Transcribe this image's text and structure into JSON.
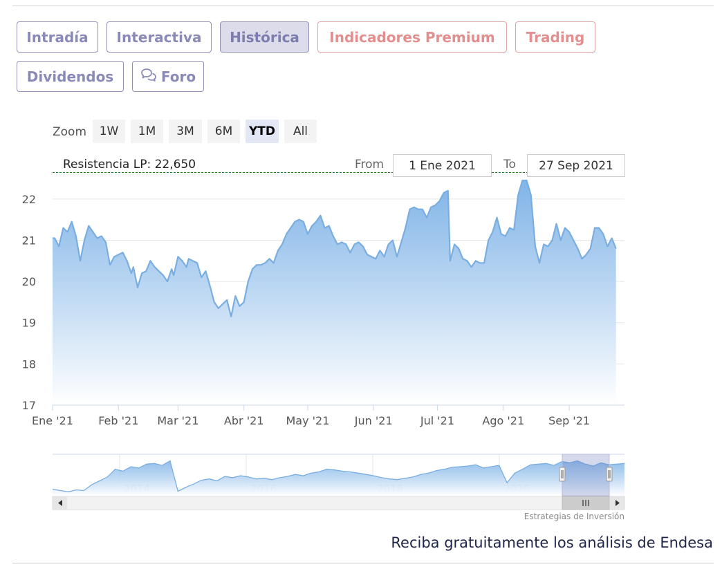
{
  "tabs": [
    {
      "label": "Intradía"
    },
    {
      "label": "Interactiva"
    },
    {
      "label": "Histórica"
    },
    {
      "label": "Indicadores Premium"
    },
    {
      "label": "Trading"
    },
    {
      "label": "Dividendos"
    },
    {
      "label": "Foro"
    }
  ],
  "zoom": {
    "label": "Zoom",
    "buttons": [
      "1W",
      "1M",
      "3M",
      "6M",
      "YTD",
      "All"
    ],
    "selected": "YTD"
  },
  "range": {
    "from_label": "From",
    "from_value": "1 Ene 2021",
    "to_label": "To",
    "to_value": "27 Sep 2021"
  },
  "resistance": {
    "label": "Resistencia LP: 22,650",
    "value": 22.65,
    "color": "#1e7b1e"
  },
  "chart_data": {
    "type": "area",
    "title": "",
    "xlabel": "",
    "ylabel": "",
    "ylim": [
      17,
      22.5
    ],
    "yticks": [
      17,
      18,
      19,
      20,
      21,
      22
    ],
    "x_tick_labels": [
      "Ene '21",
      "Feb '21",
      "Mar '21",
      "Abr '21",
      "May '21",
      "Jun '21",
      "Jul '21",
      "Ago '21",
      "Sep '21"
    ],
    "x_tick_days": [
      0,
      31,
      59,
      90,
      120,
      151,
      181,
      212,
      243
    ],
    "xlim_days": [
      0,
      269
    ],
    "line_color": "#7aaee0",
    "fill_top": "#7ab0e6",
    "fill_bottom": "#ffffff",
    "grid": true,
    "points": [
      [
        0,
        21.05
      ],
      [
        1,
        21.05
      ],
      [
        3,
        20.85
      ],
      [
        5,
        21.3
      ],
      [
        7,
        21.2
      ],
      [
        9,
        21.45
      ],
      [
        11,
        21.1
      ],
      [
        13,
        20.5
      ],
      [
        15,
        21.0
      ],
      [
        17,
        21.35
      ],
      [
        19,
        21.2
      ],
      [
        21,
        21.05
      ],
      [
        23,
        21.1
      ],
      [
        25,
        20.95
      ],
      [
        27,
        20.4
      ],
      [
        29,
        20.6
      ],
      [
        31,
        20.65
      ],
      [
        33,
        20.7
      ],
      [
        35,
        20.5
      ],
      [
        37,
        20.2
      ],
      [
        38,
        20.35
      ],
      [
        40,
        19.85
      ],
      [
        42,
        20.2
      ],
      [
        44,
        20.25
      ],
      [
        46,
        20.5
      ],
      [
        48,
        20.35
      ],
      [
        50,
        20.25
      ],
      [
        52,
        20.15
      ],
      [
        54,
        20.0
      ],
      [
        56,
        20.3
      ],
      [
        57,
        20.15
      ],
      [
        59,
        20.6
      ],
      [
        61,
        20.5
      ],
      [
        63,
        20.35
      ],
      [
        64,
        20.55
      ],
      [
        66,
        20.5
      ],
      [
        68,
        20.45
      ],
      [
        70,
        20.1
      ],
      [
        72,
        20.25
      ],
      [
        74,
        19.9
      ],
      [
        76,
        19.5
      ],
      [
        78,
        19.35
      ],
      [
        80,
        19.45
      ],
      [
        82,
        19.55
      ],
      [
        84,
        19.15
      ],
      [
        86,
        19.65
      ],
      [
        88,
        19.4
      ],
      [
        90,
        19.5
      ],
      [
        92,
        20.0
      ],
      [
        94,
        20.3
      ],
      [
        96,
        20.4
      ],
      [
        98,
        20.4
      ],
      [
        100,
        20.45
      ],
      [
        102,
        20.55
      ],
      [
        104,
        20.45
      ],
      [
        106,
        20.75
      ],
      [
        108,
        20.9
      ],
      [
        110,
        21.15
      ],
      [
        112,
        21.3
      ],
      [
        114,
        21.45
      ],
      [
        116,
        21.5
      ],
      [
        118,
        21.45
      ],
      [
        120,
        21.15
      ],
      [
        122,
        21.35
      ],
      [
        124,
        21.45
      ],
      [
        126,
        21.6
      ],
      [
        128,
        21.3
      ],
      [
        130,
        21.35
      ],
      [
        132,
        21.1
      ],
      [
        134,
        20.9
      ],
      [
        136,
        20.95
      ],
      [
        138,
        20.9
      ],
      [
        140,
        20.7
      ],
      [
        142,
        20.9
      ],
      [
        144,
        20.95
      ],
      [
        146,
        20.85
      ],
      [
        148,
        20.65
      ],
      [
        150,
        20.6
      ],
      [
        152,
        20.55
      ],
      [
        154,
        20.75
      ],
      [
        156,
        20.6
      ],
      [
        158,
        20.9
      ],
      [
        160,
        21.0
      ],
      [
        162,
        20.6
      ],
      [
        164,
        20.95
      ],
      [
        166,
        21.3
      ],
      [
        168,
        21.75
      ],
      [
        170,
        21.8
      ],
      [
        172,
        21.75
      ],
      [
        174,
        21.75
      ],
      [
        176,
        21.55
      ],
      [
        178,
        21.8
      ],
      [
        180,
        21.85
      ],
      [
        182,
        21.95
      ],
      [
        184,
        22.15
      ],
      [
        186,
        22.2
      ],
      [
        187,
        20.5
      ],
      [
        189,
        20.9
      ],
      [
        191,
        20.8
      ],
      [
        193,
        20.55
      ],
      [
        195,
        20.5
      ],
      [
        197,
        20.35
      ],
      [
        199,
        20.5
      ],
      [
        201,
        20.45
      ],
      [
        203,
        20.45
      ],
      [
        205,
        21.0
      ],
      [
        207,
        21.2
      ],
      [
        209,
        21.55
      ],
      [
        211,
        21.15
      ],
      [
        213,
        21.1
      ],
      [
        215,
        21.3
      ],
      [
        217,
        21.25
      ],
      [
        219,
        22.1
      ],
      [
        221,
        22.45
      ],
      [
        223,
        22.45
      ],
      [
        225,
        22.1
      ],
      [
        227,
        20.85
      ],
      [
        229,
        20.45
      ],
      [
        231,
        20.9
      ],
      [
        233,
        20.85
      ],
      [
        235,
        21.0
      ],
      [
        237,
        21.4
      ],
      [
        239,
        21.0
      ],
      [
        241,
        21.3
      ],
      [
        243,
        21.2
      ],
      [
        245,
        21.0
      ],
      [
        247,
        20.8
      ],
      [
        249,
        20.55
      ],
      [
        251,
        20.65
      ],
      [
        253,
        20.8
      ],
      [
        255,
        21.3
      ],
      [
        257,
        21.3
      ],
      [
        259,
        21.15
      ],
      [
        261,
        20.85
      ],
      [
        263,
        21.05
      ],
      [
        265,
        20.8
      ]
    ]
  },
  "navigator": {
    "year_labels": [
      "2014",
      "2016",
      "2018",
      "2020"
    ],
    "series": [
      14.5,
      14.3,
      14.1,
      14.4,
      14.3,
      15.2,
      15.8,
      16.4,
      17.6,
      17.3,
      18.0,
      17.8,
      18.4,
      18.5,
      18.2,
      18.9,
      14.2,
      14.8,
      15.3,
      15.9,
      16.1,
      15.8,
      16.5,
      16.3,
      16.6,
      16.4,
      16.1,
      16.2,
      16.0,
      16.3,
      16.5,
      16.8,
      16.6,
      17.0,
      17.2,
      17.6,
      17.5,
      17.3,
      17.2,
      17.0,
      16.8,
      16.6,
      16.3,
      16.1,
      16.0,
      16.2,
      16.4,
      16.8,
      17.0,
      17.4,
      17.6,
      17.9,
      18.0,
      18.1,
      18.3,
      17.8,
      18.0,
      18.2,
      15.5,
      17.0,
      17.6,
      18.3,
      18.4,
      18.5,
      18.2,
      18.8,
      18.6,
      18.9,
      18.4,
      18.1,
      18.6,
      18.3,
      18.4,
      18.5
    ]
  },
  "credit": "Estrategias de Inversión",
  "cta": "Reciba gratuitamente los análisis de Endesa"
}
